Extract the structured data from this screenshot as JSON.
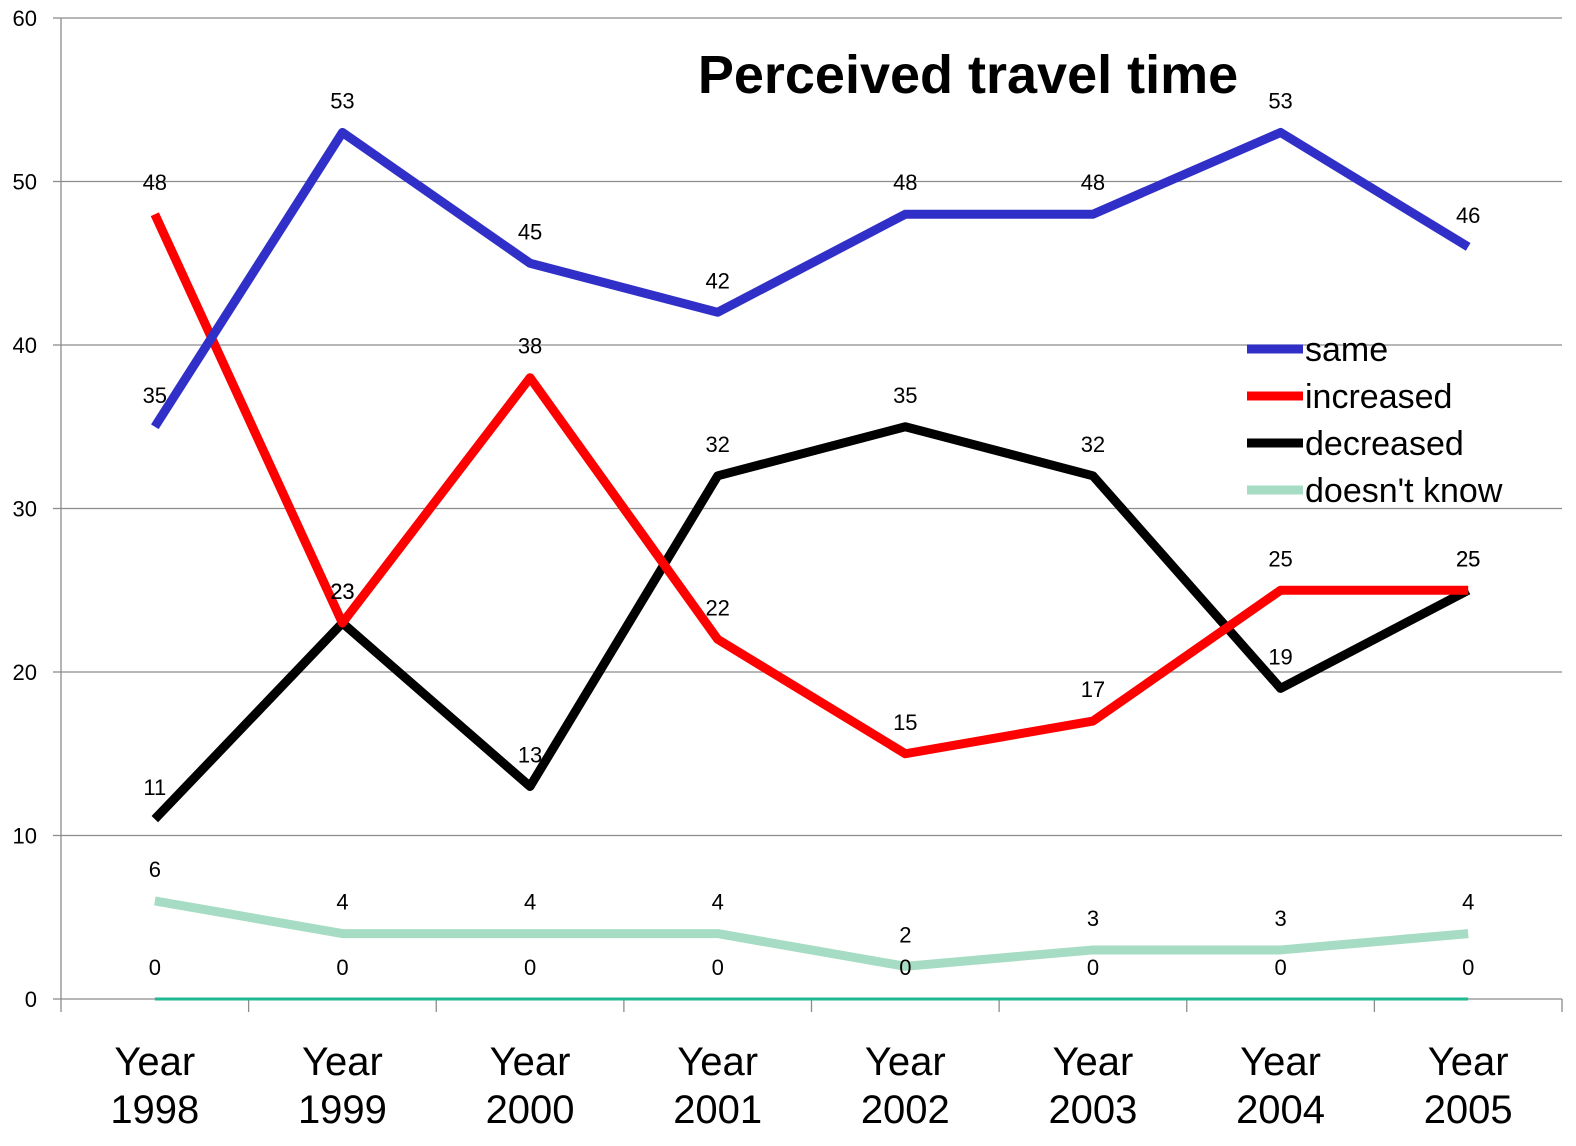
{
  "chart_data": {
    "type": "line",
    "title": "Perceived travel time",
    "categories": [
      [
        "Year",
        "1998"
      ],
      [
        "Year",
        "1999"
      ],
      [
        "Year",
        "2000"
      ],
      [
        "Year",
        "2001"
      ],
      [
        "Year",
        "2002"
      ],
      [
        "Year",
        "2003"
      ],
      [
        "Year",
        "2004"
      ],
      [
        "Year",
        "2005"
      ]
    ],
    "ylim": [
      0,
      60
    ],
    "yticks": [
      0,
      10,
      20,
      30,
      40,
      50,
      60
    ],
    "grid": true,
    "legend_position": "right",
    "series": [
      {
        "name": "same",
        "color": "#3030c8",
        "values": [
          35,
          53,
          45,
          42,
          48,
          48,
          53,
          46
        ]
      },
      {
        "name": "increased",
        "color": "#ff0000",
        "values": [
          48,
          23,
          38,
          22,
          15,
          17,
          25,
          25
        ]
      },
      {
        "name": "decreased",
        "color": "#000000",
        "values": [
          11,
          23,
          13,
          32,
          35,
          32,
          19,
          25
        ]
      },
      {
        "name": "doesn't know",
        "color": "#a6dcc4",
        "values": [
          6,
          4,
          4,
          4,
          2,
          3,
          3,
          4
        ]
      },
      {
        "name": "",
        "color": "#20b890",
        "values": [
          0,
          0,
          0,
          0,
          0,
          0,
          0,
          0
        ]
      }
    ]
  }
}
